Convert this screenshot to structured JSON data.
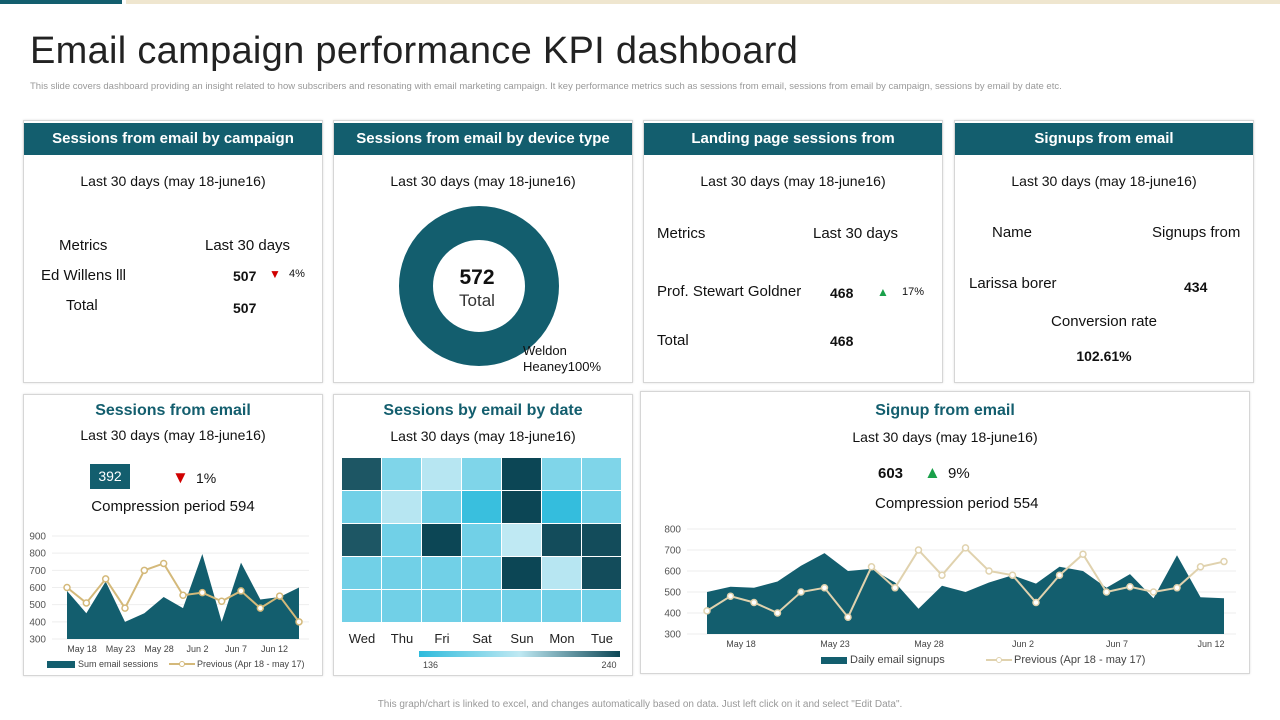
{
  "title": "Email campaign performance KPI dashboard",
  "subtitle": "This slide covers dashboard providing an insight related to how subscribers and resonating with email marketing campaign. It key performance metrics such as sessions from email, sessions from email by campaign, sessions by email by date etc.",
  "footer": "This graph/chart is linked to excel, and changes automatically based on data. Just left click on it and select \"Edit Data\".",
  "period": "Last 30 days (may 18-june16)",
  "colors": {
    "primary": "#135e6e",
    "previous": "#d4b97a",
    "up": "#1aa04a",
    "down": "#d00000"
  },
  "campaign": {
    "title": "Sessions from email by campaign",
    "col1": "Metrics",
    "col2": "Last 30 days",
    "row_name": "Ed Willens lll",
    "row_value": "507",
    "change": "4%",
    "change_dir": "down",
    "total_label": "Total",
    "total_value": "507"
  },
  "device": {
    "title": "Sessions from email by device type",
    "total": "572",
    "total_label": "Total",
    "legend": "Weldon Heaney100%"
  },
  "landing": {
    "title": "Landing page sessions from",
    "col1": "Metrics",
    "col2": "Last 30 days",
    "row_name": "Prof. Stewart Goldner",
    "row_value": "468",
    "change": "17%",
    "change_dir": "up",
    "total_label": "Total",
    "total_value": "468"
  },
  "signups": {
    "title": "Signups from email",
    "col1": "Name",
    "col2": "Signups from",
    "row_name": "Larissa borer",
    "row_value": "434",
    "conv_label": "Conversion rate",
    "conv_value": "102.61%"
  },
  "sessions": {
    "title": "Sessions  from email",
    "value": "392",
    "change": "1%",
    "change_dir": "down",
    "compare": "Compression period 594"
  },
  "bydate": {
    "title": "Sessions  by email by date"
  },
  "signup_chart": {
    "title": "Signup from email",
    "value": "603",
    "change": "9%",
    "change_dir": "up",
    "compare": "Compression period 554"
  },
  "chart_data": [
    {
      "type": "area",
      "ylim": [
        300,
        900
      ],
      "yticks": [
        "300",
        "400",
        "500",
        "600",
        "700",
        "800",
        "900"
      ],
      "xticks": [
        "May 18",
        "May 23",
        "May 28",
        "Jun 2",
        "Jun 7",
        "Jun 12"
      ],
      "series": [
        {
          "name": "Sum email sessions",
          "type": "area",
          "values": [
            580,
            450,
            635,
            400,
            450,
            545,
            480,
            795,
            400,
            745,
            530,
            545,
            600
          ]
        },
        {
          "name": "Previous (Apr 18 - may 17)",
          "type": "line",
          "values": [
            600,
            510,
            650,
            480,
            700,
            740,
            555,
            570,
            520,
            580,
            480,
            550,
            400
          ]
        }
      ]
    },
    {
      "type": "heatmap",
      "columns": [
        "Wed",
        "Thu",
        "Fri",
        "Sat",
        "Sun",
        "Mon",
        "Tue"
      ],
      "scale_min": "136",
      "scale_max": "240",
      "values": [
        [
          235,
          165,
          185,
          165,
          240,
          165,
          165
        ],
        [
          160,
          185,
          160,
          140,
          240,
          138,
          160
        ],
        [
          235,
          160,
          240,
          160,
          188,
          238,
          238
        ],
        [
          160,
          160,
          160,
          160,
          240,
          185,
          238
        ],
        [
          160,
          160,
          160,
          160,
          160,
          160,
          160
        ]
      ]
    },
    {
      "type": "area",
      "ylim": [
        300,
        800
      ],
      "yticks": [
        "300",
        "400",
        "500",
        "600",
        "700",
        "800"
      ],
      "xticks": [
        "May 18",
        "May 23",
        "May 28",
        "Jun 2",
        "Jun 7",
        "Jun 12"
      ],
      "series": [
        {
          "name": "Daily email signups",
          "type": "area",
          "values": [
            500,
            525,
            520,
            550,
            625,
            685,
            600,
            610,
            545,
            420,
            530,
            500,
            545,
            580,
            540,
            620,
            600,
            520,
            585,
            470,
            675,
            475,
            470
          ]
        },
        {
          "name": "Previous (Apr 18 - may 17)",
          "type": "line",
          "values": [
            410,
            480,
            450,
            400,
            500,
            520,
            380,
            620,
            520,
            700,
            580,
            710,
            600,
            580,
            450,
            580,
            680,
            500,
            525,
            500,
            520,
            620,
            645
          ]
        }
      ]
    }
  ]
}
